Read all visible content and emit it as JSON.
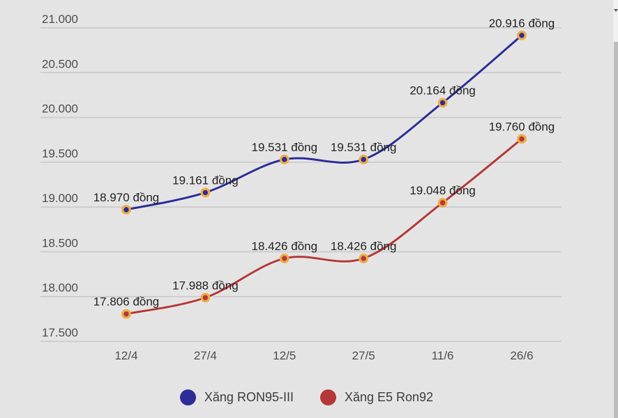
{
  "chart_data": {
    "type": "line",
    "x": [
      "12/4",
      "27/4",
      "12/5",
      "27/5",
      "11/6",
      "26/6"
    ],
    "series": [
      {
        "name": "Xăng RON95-III",
        "color": "#2d2d97",
        "values": [
          18970,
          19161,
          19531,
          19531,
          20164,
          20916
        ],
        "value_labels": [
          "18.970 đồng",
          "19.161 đồng",
          "19.531 đồng",
          "19.531 đồng",
          "20.164 đồng",
          "20.916 đồng"
        ]
      },
      {
        "name": "Xăng E5 Ron92",
        "color": "#b43838",
        "values": [
          17806,
          17988,
          18426,
          18426,
          19048,
          19760
        ],
        "value_labels": [
          "17.806 đồng",
          "17.988 đồng",
          "18.426 đồng",
          "18.426 đồng",
          "19.048 đồng",
          "19.760 đồng"
        ]
      }
    ],
    "ylim": [
      17500,
      21000
    ],
    "yticks": {
      "values": [
        21000,
        20500,
        20000,
        19500,
        19000,
        18500,
        18000,
        17500
      ],
      "labels": [
        "21.000",
        "20.500",
        "20.000",
        "19.500",
        "19.000",
        "18.500",
        "18.000",
        "17.500"
      ]
    },
    "grid": true,
    "legend_position": "bottom",
    "colors": {
      "background": "#e4e4e4",
      "gridline": "#c9c9c9",
      "marker_ring": "#eeac45",
      "axis_text": "#4c4c4c",
      "data_label_text": "#222222",
      "scrollbar_track": "#f1f1f1",
      "scrollbar_thumb": "#bdbdbd"
    }
  },
  "legend": {
    "items": [
      {
        "label": "Xăng RON95-III",
        "color": "#2d2d97"
      },
      {
        "label": "Xăng E5 Ron92",
        "color": "#b43838"
      }
    ]
  }
}
